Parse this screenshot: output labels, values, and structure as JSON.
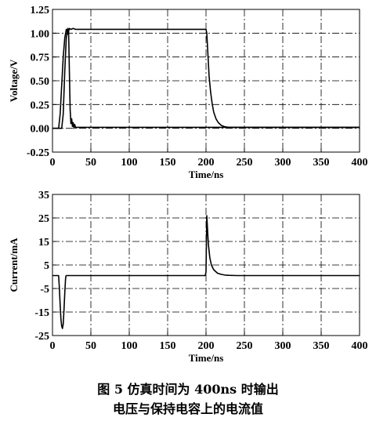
{
  "caption": {
    "line1": "图 5   仿真时间为 400ns 时输出",
    "line2": "电压与保持电容上的电流值"
  },
  "colors": {
    "line": "#000000",
    "grid": "#000000",
    "background": "#ffffff"
  },
  "chart_data": [
    {
      "type": "line",
      "title": "",
      "xlabel": "Time/ns",
      "ylabel": "Voltage/V",
      "xlim": [
        0,
        400
      ],
      "ylim": [
        -0.25,
        1.25
      ],
      "xticks": [
        0,
        50,
        100,
        150,
        200,
        250,
        300,
        350,
        400
      ],
      "yticks": [
        -0.25,
        0.0,
        0.25,
        0.5,
        0.75,
        1.0,
        1.25
      ],
      "xtick_labels": [
        "0",
        "50",
        "100",
        "150",
        "200",
        "250",
        "300",
        "350",
        "400"
      ],
      "ytick_labels": [
        "-0.25",
        "0.00",
        "0.25",
        "0.50",
        "0.75",
        "1.00",
        "1.25"
      ],
      "grid": "dash-dot",
      "series": [
        {
          "x": [
            0,
            8,
            10,
            12,
            14,
            16,
            18,
            19,
            20,
            21,
            22,
            24,
            27,
            30,
            35,
            50,
            100,
            150,
            200,
            201,
            202,
            203,
            204,
            206,
            208,
            210,
            213,
            216,
            220,
            225,
            230,
            240,
            260,
            300,
            400
          ],
          "y": [
            0.0,
            0.0,
            0.15,
            0.45,
            0.75,
            0.95,
            1.04,
            1.03,
            0.99,
            1.02,
            1.05,
            1.04,
            1.05,
            1.04,
            1.04,
            1.04,
            1.04,
            1.04,
            1.04,
            1.0,
            0.85,
            0.7,
            0.55,
            0.38,
            0.26,
            0.17,
            0.1,
            0.06,
            0.03,
            0.015,
            0.01,
            0.01,
            0.01,
            0.01,
            0.01
          ]
        },
        {
          "x": [
            0,
            12,
            14,
            16,
            18,
            20,
            21,
            22,
            23,
            24,
            25,
            26,
            27,
            28,
            29,
            30,
            32,
            35,
            50,
            100,
            200,
            300,
            400
          ],
          "y": [
            0.0,
            0.0,
            0.15,
            0.6,
            0.95,
            1.05,
            1.02,
            0.6,
            0.2,
            0.05,
            0.1,
            0.02,
            0.06,
            0.0,
            0.04,
            0.01,
            0.01,
            0.01,
            0.01,
            0.01,
            0.01,
            0.01,
            0.01
          ]
        }
      ]
    },
    {
      "type": "line",
      "title": "",
      "xlabel": "Time/ns",
      "ylabel": "Current/mA",
      "xlim": [
        0,
        400
      ],
      "ylim": [
        -25,
        35
      ],
      "xticks": [
        0,
        50,
        100,
        150,
        200,
        250,
        300,
        350,
        400
      ],
      "yticks": [
        -25,
        -15,
        -5,
        5,
        15,
        25,
        35
      ],
      "xtick_labels": [
        "0",
        "50",
        "100",
        "150",
        "200",
        "250",
        "300",
        "350",
        "400"
      ],
      "ytick_labels": [
        "-25",
        "-15",
        "-5",
        "5",
        "15",
        "25",
        "35"
      ],
      "grid": "dash-dot",
      "series": [
        {
          "x": [
            0,
            8,
            9,
            10,
            11,
            12,
            13,
            14,
            15,
            16,
            17,
            17.5,
            18,
            50,
            100,
            150,
            199,
            200,
            201,
            202,
            203,
            205,
            207,
            210,
            215,
            220,
            225,
            230,
            240,
            260,
            300,
            400
          ],
          "y": [
            0.5,
            0.5,
            -5,
            -12,
            -18,
            -21,
            -22,
            -20,
            -14,
            -7,
            -1,
            0.3,
            0.5,
            0.5,
            0.5,
            0.5,
            0.5,
            2,
            26,
            20,
            14,
            8,
            5,
            3,
            1.5,
            1,
            0.7,
            0.6,
            0.5,
            0.5,
            0.5,
            0.5
          ]
        }
      ]
    }
  ]
}
